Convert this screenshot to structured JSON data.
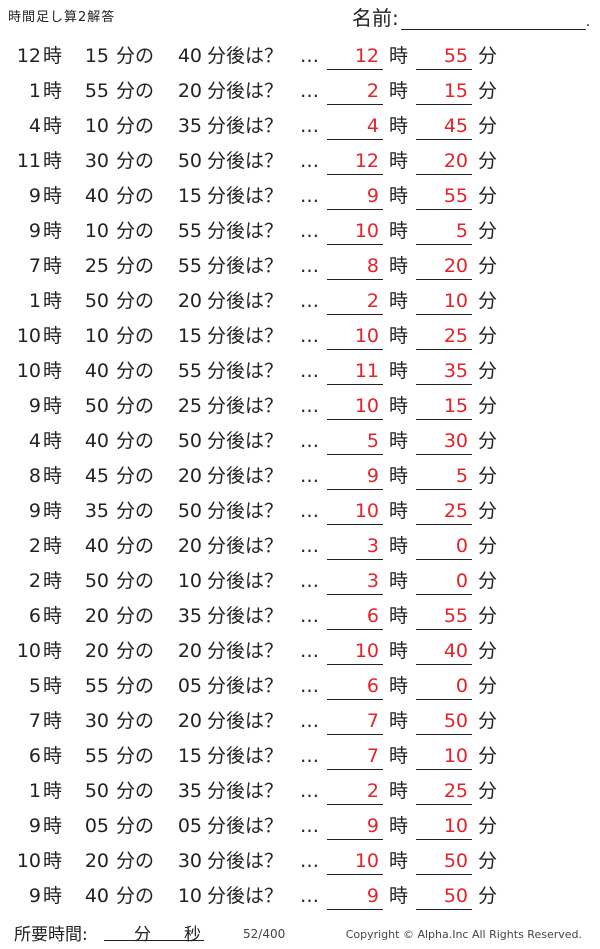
{
  "header": {
    "title": "時間足し算2解答",
    "name_label": "名前:",
    "name_end": "."
  },
  "labels": {
    "hour": "時",
    "minute_of": "分の",
    "minutes_later": "分後は？",
    "dots": "…",
    "minute": "分"
  },
  "problems": [
    {
      "h": "12",
      "m": "15",
      "add": "40",
      "ah": "12",
      "am": "55"
    },
    {
      "h": "1",
      "m": "55",
      "add": "20",
      "ah": "2",
      "am": "15"
    },
    {
      "h": "4",
      "m": "10",
      "add": "35",
      "ah": "4",
      "am": "45"
    },
    {
      "h": "11",
      "m": "30",
      "add": "50",
      "ah": "12",
      "am": "20"
    },
    {
      "h": "9",
      "m": "40",
      "add": "15",
      "ah": "9",
      "am": "55"
    },
    {
      "h": "9",
      "m": "10",
      "add": "55",
      "ah": "10",
      "am": "5"
    },
    {
      "h": "7",
      "m": "25",
      "add": "55",
      "ah": "8",
      "am": "20"
    },
    {
      "h": "1",
      "m": "50",
      "add": "20",
      "ah": "2",
      "am": "10"
    },
    {
      "h": "10",
      "m": "10",
      "add": "15",
      "ah": "10",
      "am": "25"
    },
    {
      "h": "10",
      "m": "40",
      "add": "55",
      "ah": "11",
      "am": "35"
    },
    {
      "h": "9",
      "m": "50",
      "add": "25",
      "ah": "10",
      "am": "15"
    },
    {
      "h": "4",
      "m": "40",
      "add": "50",
      "ah": "5",
      "am": "30"
    },
    {
      "h": "8",
      "m": "45",
      "add": "20",
      "ah": "9",
      "am": "5"
    },
    {
      "h": "9",
      "m": "35",
      "add": "50",
      "ah": "10",
      "am": "25"
    },
    {
      "h": "2",
      "m": "40",
      "add": "20",
      "ah": "3",
      "am": "0"
    },
    {
      "h": "2",
      "m": "50",
      "add": "10",
      "ah": "3",
      "am": "0"
    },
    {
      "h": "6",
      "m": "20",
      "add": "35",
      "ah": "6",
      "am": "55"
    },
    {
      "h": "10",
      "m": "20",
      "add": "20",
      "ah": "10",
      "am": "40"
    },
    {
      "h": "5",
      "m": "55",
      "add": "05",
      "ah": "6",
      "am": "0"
    },
    {
      "h": "7",
      "m": "30",
      "add": "20",
      "ah": "7",
      "am": "50"
    },
    {
      "h": "6",
      "m": "55",
      "add": "15",
      "ah": "7",
      "am": "10"
    },
    {
      "h": "1",
      "m": "50",
      "add": "35",
      "ah": "2",
      "am": "25"
    },
    {
      "h": "9",
      "m": "05",
      "add": "05",
      "ah": "9",
      "am": "10"
    },
    {
      "h": "10",
      "m": "20",
      "add": "30",
      "ah": "10",
      "am": "50"
    },
    {
      "h": "9",
      "m": "40",
      "add": "10",
      "ah": "9",
      "am": "50"
    }
  ],
  "footer": {
    "time_label": "所要時間:",
    "minutes_label": "分",
    "seconds_label": "秒",
    "page": "52/400",
    "copyright": "Copyright ©  Alpha.Inc All Rights Reserved."
  },
  "colors": {
    "answer": "#e2232a",
    "text": "#222222"
  }
}
